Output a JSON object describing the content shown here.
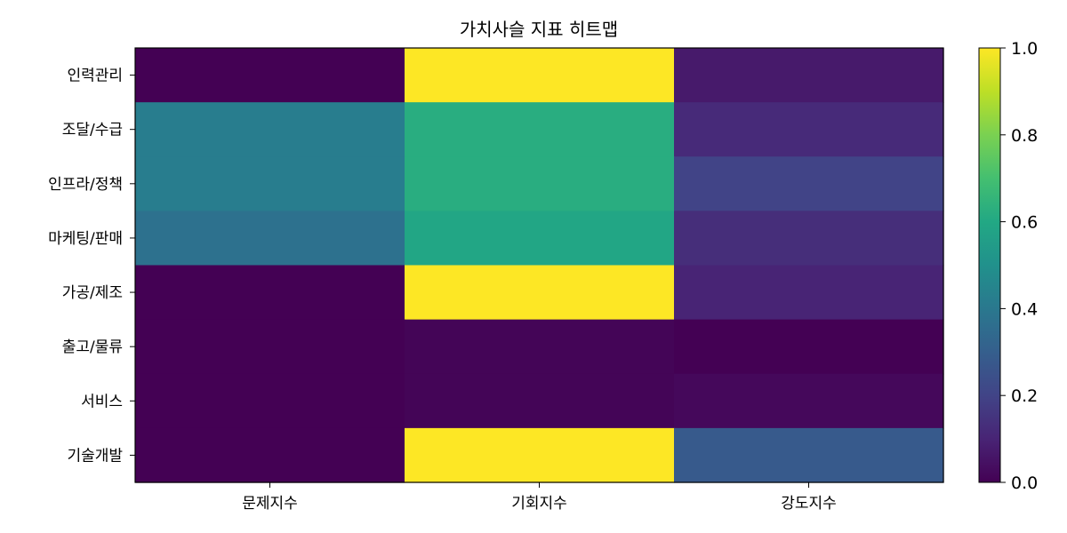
{
  "chart_data": {
    "type": "heatmap",
    "title": "가치사슬 지표 히트맵",
    "xlabel": "",
    "ylabel": "",
    "columns": [
      "문제지수",
      "기회지수",
      "강도지수"
    ],
    "rows": [
      "인력관리",
      "조달/수급",
      "인프라/정책",
      "마케팅/판매",
      "가공/제조",
      "출고/물류",
      "서비스",
      "기술개발"
    ],
    "values": [
      [
        0.0,
        1.0,
        0.07
      ],
      [
        0.42,
        0.62,
        0.12
      ],
      [
        0.42,
        0.62,
        0.2
      ],
      [
        0.37,
        0.59,
        0.13
      ],
      [
        0.0,
        1.0,
        0.1
      ],
      [
        0.0,
        0.01,
        0.0
      ],
      [
        0.0,
        0.01,
        0.02
      ],
      [
        0.0,
        1.0,
        0.28
      ]
    ],
    "colormap": "viridis",
    "vmin": 0.0,
    "vmax": 1.0,
    "colorbar_ticks": [
      "0.0",
      "0.2",
      "0.4",
      "0.6",
      "0.8",
      "1.0"
    ],
    "grid": false
  }
}
